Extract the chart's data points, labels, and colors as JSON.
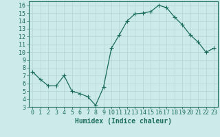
{
  "x": [
    0,
    1,
    2,
    3,
    4,
    5,
    6,
    7,
    8,
    9,
    10,
    11,
    12,
    13,
    14,
    15,
    16,
    17,
    18,
    19,
    20,
    21,
    22,
    23
  ],
  "y": [
    7.5,
    6.5,
    5.7,
    5.7,
    7.0,
    5.0,
    4.7,
    4.3,
    3.2,
    5.5,
    10.5,
    12.2,
    14.0,
    14.9,
    15.0,
    15.2,
    16.0,
    15.7,
    14.5,
    13.5,
    12.2,
    11.3,
    10.0,
    10.5
  ],
  "line_color": "#1a6b5a",
  "marker": "+",
  "marker_size": 4,
  "bg_color": "#cceaea",
  "grid_color": "#b8d8d8",
  "xlabel": "Humidex (Indice chaleur)",
  "xlabel_fontsize": 7,
  "tick_fontsize": 6,
  "xlim": [
    -0.5,
    23.5
  ],
  "ylim": [
    3,
    16.5
  ],
  "yticks": [
    3,
    4,
    5,
    6,
    7,
    8,
    9,
    10,
    11,
    12,
    13,
    14,
    15,
    16
  ],
  "xticks": [
    0,
    1,
    2,
    3,
    4,
    5,
    6,
    7,
    8,
    9,
    10,
    11,
    12,
    13,
    14,
    15,
    16,
    17,
    18,
    19,
    20,
    21,
    22,
    23
  ]
}
